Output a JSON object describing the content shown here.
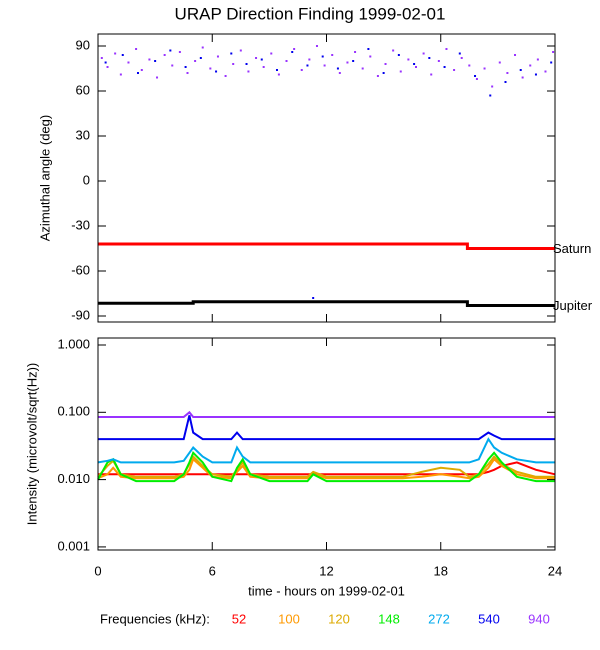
{
  "chart_data": [
    {
      "type": "scatter",
      "title": "URAP Direction Finding  1999-02-01",
      "ylabel": "Azimuthal angle (deg)",
      "xlim": [
        0,
        24
      ],
      "xticks": [
        0,
        6,
        12,
        18,
        24
      ],
      "ylim": [
        -94,
        98
      ],
      "yticks": [
        -90,
        -60,
        -30,
        0,
        30,
        60,
        90
      ],
      "series": [
        {
          "color": "#9933ff",
          "x": [
            0.2,
            0.5,
            0.9,
            1.2,
            1.6,
            2.0,
            2.3,
            2.7,
            3.1,
            3.5,
            3.9,
            4.3,
            4.7,
            5.1,
            5.5,
            5.9,
            6.3,
            6.7,
            7.1,
            7.5,
            7.9,
            8.3,
            8.7,
            9.1,
            9.5,
            9.9,
            10.3,
            10.7,
            11.1,
            11.5,
            11.9,
            12.3,
            12.7,
            13.1,
            13.5,
            13.9,
            14.3,
            14.7,
            15.1,
            15.5,
            15.9,
            16.3,
            16.7,
            17.1,
            17.5,
            17.9,
            18.3,
            18.7,
            19.1,
            19.5,
            19.9,
            20.3,
            20.7,
            21.1,
            21.5,
            21.9,
            22.3,
            22.7,
            23.1,
            23.5,
            23.9
          ],
          "values": [
            82,
            76,
            85,
            71,
            79,
            88,
            74,
            81,
            69,
            84,
            77,
            86,
            72,
            80,
            89,
            75,
            83,
            70,
            78,
            87,
            73,
            82,
            76,
            85,
            71,
            80,
            88,
            74,
            81,
            90,
            77,
            84,
            72,
            79,
            86,
            75,
            83,
            70,
            78,
            87,
            73,
            81,
            76,
            85,
            71,
            80,
            88,
            74,
            82,
            77,
            68,
            75,
            63,
            79,
            72,
            84,
            69,
            77,
            81,
            73,
            86
          ]
        },
        {
          "color": "#0000ee",
          "x": [
            0.4,
            1.3,
            2.1,
            3.0,
            3.8,
            4.6,
            5.4,
            6.2,
            7.0,
            7.8,
            8.6,
            9.4,
            10.2,
            11.0,
            11.8,
            12.6,
            13.4,
            14.2,
            15.0,
            15.8,
            16.6,
            17.4,
            18.2,
            19.0,
            19.8,
            20.6,
            21.4,
            22.2,
            23.0,
            23.8,
            11.3
          ],
          "values": [
            79,
            84,
            72,
            80,
            87,
            76,
            82,
            73,
            85,
            78,
            81,
            74,
            86,
            77,
            83,
            75,
            80,
            88,
            72,
            84,
            78,
            82,
            76,
            85,
            70,
            57,
            66,
            74,
            71,
            79,
            -78
          ]
        }
      ],
      "lines": [
        {
          "name": "Saturn",
          "color": "#ff0000",
          "x": [
            0,
            19.4,
            19.4,
            24
          ],
          "values": [
            -42,
            -42,
            -45,
            -45
          ]
        },
        {
          "name": "Jupiter",
          "color": "#000000",
          "x": [
            0,
            5,
            5,
            19.4,
            19.4,
            24
          ],
          "values": [
            -81.5,
            -81.5,
            -80.5,
            -80.5,
            -83,
            -83
          ]
        }
      ]
    },
    {
      "type": "line",
      "ylabel": "Intensity (microvolt/sqrt(Hz))",
      "xlabel": "time - hours on 1999-02-01",
      "log": true,
      "xlim": [
        0,
        24
      ],
      "xticks": [
        0,
        6,
        12,
        18,
        24
      ],
      "ylim": [
        0.0009,
        1.27
      ],
      "yticks": [
        0.001,
        {
          "value": 0.01,
          "label": "0.010"
        },
        {
          "value": 0.1,
          "label": "0.100"
        },
        {
          "value": 1,
          "label": "1.000"
        }
      ],
      "legend_title": "Frequencies (kHz):",
      "x": [
        0,
        0.5,
        0.8,
        1.2,
        2,
        3,
        4,
        4.5,
        4.8,
        5,
        5.5,
        6,
        7,
        7.3,
        7.6,
        8,
        9,
        10,
        11,
        11.3,
        12,
        13,
        14,
        15,
        16,
        17,
        18,
        19,
        19.5,
        20,
        20.5,
        20.8,
        21.2,
        22,
        23,
        24
      ],
      "series": [
        {
          "name": "52",
          "color": "#ff0000",
          "values": [
            0.012,
            0.012,
            0.012,
            0.012,
            0.012,
            0.012,
            0.012,
            0.012,
            0.012,
            0.012,
            0.012,
            0.012,
            0.012,
            0.012,
            0.012,
            0.012,
            0.012,
            0.012,
            0.012,
            0.012,
            0.012,
            0.012,
            0.012,
            0.012,
            0.012,
            0.012,
            0.012,
            0.012,
            0.012,
            0.012,
            0.013,
            0.014,
            0.016,
            0.018,
            0.014,
            0.012
          ]
        },
        {
          "name": "100",
          "color": "#ff9900",
          "values": [
            0.0105,
            0.012,
            0.015,
            0.011,
            0.0105,
            0.0105,
            0.0105,
            0.011,
            0.014,
            0.02,
            0.015,
            0.011,
            0.0105,
            0.013,
            0.016,
            0.011,
            0.0105,
            0.0105,
            0.0105,
            0.012,
            0.0105,
            0.0105,
            0.0105,
            0.0105,
            0.0105,
            0.011,
            0.012,
            0.011,
            0.0105,
            0.011,
            0.015,
            0.02,
            0.016,
            0.012,
            0.0105,
            0.0105
          ]
        },
        {
          "name": "120",
          "color": "#ddaa00",
          "values": [
            0.011,
            0.016,
            0.019,
            0.012,
            0.011,
            0.011,
            0.011,
            0.012,
            0.017,
            0.022,
            0.016,
            0.012,
            0.011,
            0.014,
            0.018,
            0.012,
            0.011,
            0.011,
            0.011,
            0.013,
            0.011,
            0.011,
            0.011,
            0.011,
            0.011,
            0.013,
            0.015,
            0.014,
            0.011,
            0.012,
            0.017,
            0.022,
            0.017,
            0.013,
            0.011,
            0.011
          ]
        },
        {
          "name": "148",
          "color": "#00ee00",
          "values": [
            0.01,
            0.018,
            0.02,
            0.012,
            0.0095,
            0.0095,
            0.0095,
            0.012,
            0.018,
            0.025,
            0.018,
            0.011,
            0.0095,
            0.015,
            0.02,
            0.012,
            0.0095,
            0.0095,
            0.0095,
            0.012,
            0.0095,
            0.0095,
            0.0095,
            0.0095,
            0.0095,
            0.0095,
            0.0095,
            0.0095,
            0.0095,
            0.012,
            0.02,
            0.025,
            0.018,
            0.011,
            0.0095,
            0.0095
          ]
        },
        {
          "name": "272",
          "color": "#00aaee",
          "values": [
            0.018,
            0.019,
            0.02,
            0.018,
            0.018,
            0.018,
            0.018,
            0.019,
            0.025,
            0.03,
            0.022,
            0.018,
            0.018,
            0.03,
            0.022,
            0.018,
            0.018,
            0.018,
            0.018,
            0.018,
            0.018,
            0.018,
            0.018,
            0.018,
            0.018,
            0.018,
            0.018,
            0.018,
            0.018,
            0.02,
            0.04,
            0.03,
            0.025,
            0.02,
            0.018,
            0.018
          ]
        },
        {
          "name": "540",
          "color": "#0000ee",
          "values": [
            0.04,
            0.04,
            0.04,
            0.04,
            0.04,
            0.04,
            0.04,
            0.04,
            0.09,
            0.05,
            0.04,
            0.04,
            0.04,
            0.05,
            0.04,
            0.04,
            0.04,
            0.04,
            0.04,
            0.04,
            0.04,
            0.04,
            0.04,
            0.04,
            0.04,
            0.04,
            0.04,
            0.04,
            0.04,
            0.04,
            0.05,
            0.045,
            0.04,
            0.04,
            0.04,
            0.04
          ]
        },
        {
          "name": "940",
          "color": "#9933ff",
          "values": [
            0.085,
            0.085,
            0.085,
            0.085,
            0.085,
            0.085,
            0.085,
            0.085,
            0.1,
            0.085,
            0.085,
            0.085,
            0.085,
            0.085,
            0.085,
            0.085,
            0.085,
            0.085,
            0.085,
            0.085,
            0.085,
            0.085,
            0.085,
            0.085,
            0.085,
            0.085,
            0.085,
            0.085,
            0.085,
            0.085,
            0.085,
            0.085,
            0.085,
            0.085,
            0.085,
            0.085
          ]
        }
      ]
    }
  ]
}
